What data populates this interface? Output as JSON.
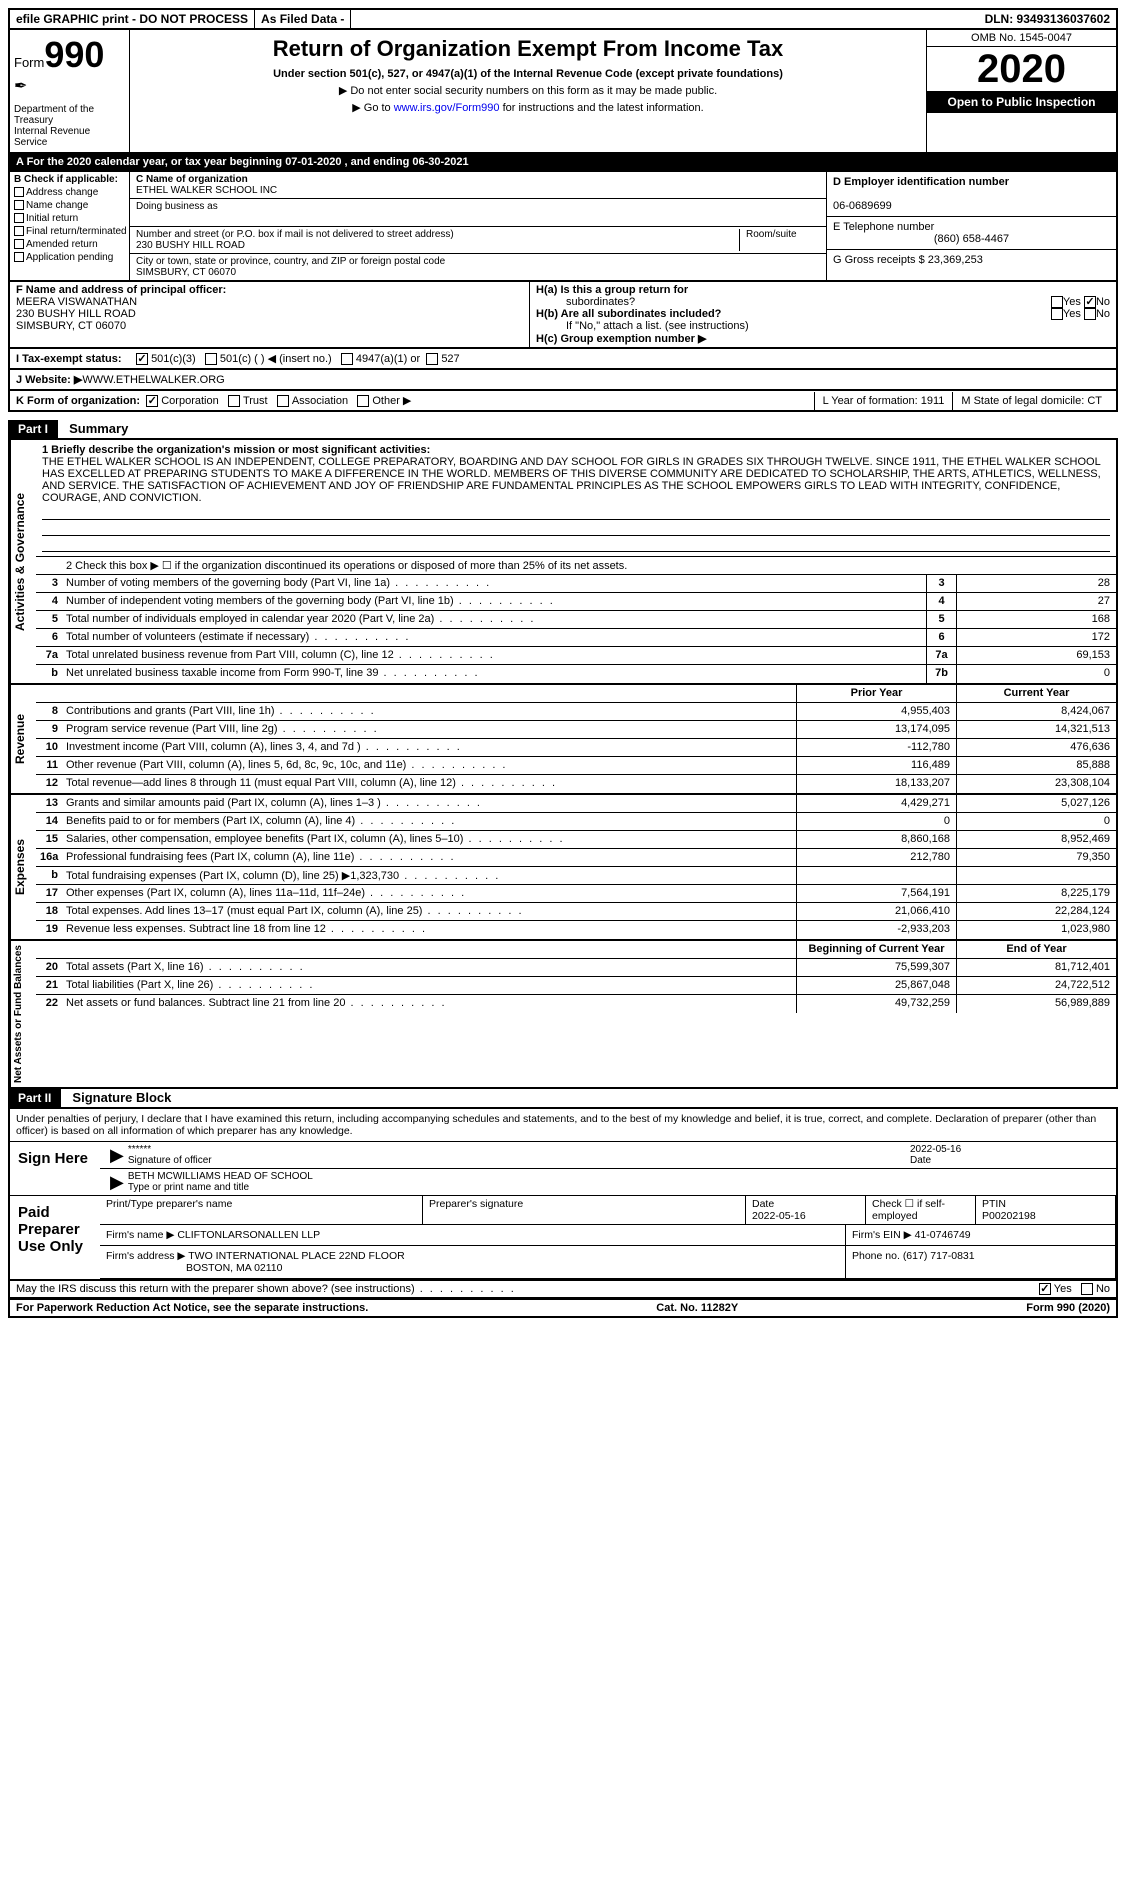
{
  "top": {
    "efile": "efile GRAPHIC print - DO NOT PROCESS",
    "asfiled": "As Filed Data -",
    "dln": "DLN: 93493136037602"
  },
  "header": {
    "form_label": "Form",
    "form_num": "990",
    "dept": "Department of the Treasury\nInternal Revenue Service",
    "title": "Return of Organization Exempt From Income Tax",
    "subtitle": "Under section 501(c), 527, or 4947(a)(1) of the Internal Revenue Code (except private foundations)",
    "line2": "▶ Do not enter social security numbers on this form as it may be made public.",
    "line3_pre": "▶ Go to ",
    "line3_link": "www.irs.gov/Form990",
    "line3_post": " for instructions and the latest information.",
    "omb": "OMB No. 1545-0047",
    "year": "2020",
    "open": "Open to Public Inspection"
  },
  "rowA": "A   For the 2020 calendar year, or tax year beginning 07-01-2020   , and ending 06-30-2021",
  "secB": {
    "label": "B Check if applicable:",
    "checks": [
      "Address change",
      "Name change",
      "Initial return",
      "Final return/terminated",
      "Amended return",
      "Application pending"
    ],
    "c_label": "C Name of organization",
    "c_name": "ETHEL WALKER SCHOOL INC",
    "dba_label": "Doing business as",
    "street_label": "Number and street (or P.O. box if mail is not delivered to street address)",
    "room_label": "Room/suite",
    "street": "230 BUSHY HILL ROAD",
    "city_label": "City or town, state or province, country, and ZIP or foreign postal code",
    "city": "SIMSBURY, CT  06070",
    "d_label": "D Employer identification number",
    "d_val": "06-0689699",
    "e_label": "E Telephone number",
    "e_val": "(860) 658-4467",
    "g_label": "G Gross receipts $ 23,369,253"
  },
  "rowF": {
    "f_label": "F  Name and address of principal officer:",
    "f_name": "MEERA VISWANATHAN",
    "f_addr1": "230 BUSHY HILL ROAD",
    "f_addr2": "SIMSBURY, CT  06070",
    "ha": "H(a)  Is this a group return for",
    "ha2": "subordinates?",
    "hb": "H(b)  Are all subordinates included?",
    "hb2": "If \"No,\" attach a list. (see instructions)",
    "hc": "H(c)  Group exemption number ▶",
    "yes": "Yes",
    "no": "No"
  },
  "rowI": {
    "label": "I   Tax-exempt status:",
    "opts": [
      "501(c)(3)",
      "501(c) (  ) ◀ (insert no.)",
      "4947(a)(1) or",
      "527"
    ]
  },
  "rowJ": {
    "label": "J   Website: ▶",
    "val": "  WWW.ETHELWALKER.ORG"
  },
  "rowK": {
    "label": "K Form of organization:",
    "opts": [
      "Corporation",
      "Trust",
      "Association",
      "Other ▶"
    ],
    "L": "L Year of formation: 1911",
    "M": "M State of legal domicile: CT"
  },
  "partI": {
    "num": "Part I",
    "title": "Summary",
    "q1_label": "1  Briefly describe the organization's mission or most significant activities:",
    "mission": "THE ETHEL WALKER SCHOOL IS AN INDEPENDENT, COLLEGE PREPARATORY, BOARDING AND DAY SCHOOL FOR GIRLS IN GRADES SIX THROUGH TWELVE. SINCE 1911, THE ETHEL WALKER SCHOOL HAS EXCELLED AT PREPARING STUDENTS TO MAKE A DIFFERENCE IN THE WORLD. MEMBERS OF THIS DIVERSE COMMUNITY ARE DEDICATED TO SCHOLARSHIP, THE ARTS, ATHLETICS, WELLNESS, AND SERVICE. THE SATISFACTION OF ACHIEVEMENT AND JOY OF FRIENDSHIP ARE FUNDAMENTAL PRINCIPLES AS THE SCHOOL EMPOWERS GIRLS TO LEAD WITH INTEGRITY, CONFIDENCE, COURAGE, AND CONVICTION.",
    "q2": "2   Check this box ▶ ☐ if the organization discontinued its operations or disposed of more than 25% of its net assets.",
    "side_ag": "Activities & Governance",
    "side_rev": "Revenue",
    "side_exp": "Expenses",
    "side_net": "Net Assets or Fund Balances",
    "rows_ag": [
      {
        "n": "3",
        "d": "Number of voting members of the governing body (Part VI, line 1a)",
        "k": "3",
        "v": "28"
      },
      {
        "n": "4",
        "d": "Number of independent voting members of the governing body (Part VI, line 1b)",
        "k": "4",
        "v": "27"
      },
      {
        "n": "5",
        "d": "Total number of individuals employed in calendar year 2020 (Part V, line 2a)",
        "k": "5",
        "v": "168"
      },
      {
        "n": "6",
        "d": "Total number of volunteers (estimate if necessary)",
        "k": "6",
        "v": "172"
      },
      {
        "n": "7a",
        "d": "Total unrelated business revenue from Part VIII, column (C), line 12",
        "k": "7a",
        "v": "69,153"
      },
      {
        "n": "b",
        "d": "Net unrelated business taxable income from Form 990-T, line 39",
        "k": "7b",
        "v": "0"
      }
    ],
    "head_prior": "Prior Year",
    "head_curr": "Current Year",
    "rows_rev": [
      {
        "n": "8",
        "d": "Contributions and grants (Part VIII, line 1h)",
        "p": "4,955,403",
        "c": "8,424,067"
      },
      {
        "n": "9",
        "d": "Program service revenue (Part VIII, line 2g)",
        "p": "13,174,095",
        "c": "14,321,513"
      },
      {
        "n": "10",
        "d": "Investment income (Part VIII, column (A), lines 3, 4, and 7d )",
        "p": "-112,780",
        "c": "476,636"
      },
      {
        "n": "11",
        "d": "Other revenue (Part VIII, column (A), lines 5, 6d, 8c, 9c, 10c, and 11e)",
        "p": "116,489",
        "c": "85,888"
      },
      {
        "n": "12",
        "d": "Total revenue—add lines 8 through 11 (must equal Part VIII, column (A), line 12)",
        "p": "18,133,207",
        "c": "23,308,104"
      }
    ],
    "rows_exp": [
      {
        "n": "13",
        "d": "Grants and similar amounts paid (Part IX, column (A), lines 1–3 )",
        "p": "4,429,271",
        "c": "5,027,126"
      },
      {
        "n": "14",
        "d": "Benefits paid to or for members (Part IX, column (A), line 4)",
        "p": "0",
        "c": "0"
      },
      {
        "n": "15",
        "d": "Salaries, other compensation, employee benefits (Part IX, column (A), lines 5–10)",
        "p": "8,860,168",
        "c": "8,952,469"
      },
      {
        "n": "16a",
        "d": "Professional fundraising fees (Part IX, column (A), line 11e)",
        "p": "212,780",
        "c": "79,350"
      },
      {
        "n": "b",
        "d": "Total fundraising expenses (Part IX, column (D), line 25) ▶1,323,730",
        "p": "",
        "c": ""
      },
      {
        "n": "17",
        "d": "Other expenses (Part IX, column (A), lines 11a–11d, 11f–24e)",
        "p": "7,564,191",
        "c": "8,225,179"
      },
      {
        "n": "18",
        "d": "Total expenses. Add lines 13–17 (must equal Part IX, column (A), line 25)",
        "p": "21,066,410",
        "c": "22,284,124"
      },
      {
        "n": "19",
        "d": "Revenue less expenses. Subtract line 18 from line 12",
        "p": "-2,933,203",
        "c": "1,023,980"
      }
    ],
    "head_beg": "Beginning of Current Year",
    "head_end": "End of Year",
    "rows_net": [
      {
        "n": "20",
        "d": "Total assets (Part X, line 16)",
        "p": "75,599,307",
        "c": "81,712,401"
      },
      {
        "n": "21",
        "d": "Total liabilities (Part X, line 26)",
        "p": "25,867,048",
        "c": "24,722,512"
      },
      {
        "n": "22",
        "d": "Net assets or fund balances. Subtract line 21 from line 20",
        "p": "49,732,259",
        "c": "56,989,889"
      }
    ]
  },
  "partII": {
    "num": "Part II",
    "title": "Signature Block",
    "decl": "Under penalties of perjury, I declare that I have examined this return, including accompanying schedules and statements, and to the best of my knowledge and belief, it is true, correct, and complete. Declaration of preparer (other than officer) is based on all information of which preparer has any knowledge.",
    "sign_here": "Sign Here",
    "stars": "******",
    "sig_officer": "Signature of officer",
    "date1": "2022-05-16",
    "date_label": "Date",
    "name_title": "BETH MCWILLIAMS HEAD OF SCHOOL",
    "type_label": "Type or print name and title",
    "paid": "Paid Preparer Use Only",
    "col1": "Print/Type preparer's name",
    "col2": "Preparer's signature",
    "col3": "Date",
    "col3v": "2022-05-16",
    "col4": "Check ☐ if self-employed",
    "col5l": "PTIN",
    "col5v": "P00202198",
    "firm_name_l": "Firm's name    ▶",
    "firm_name": "CLIFTONLARSONALLEN LLP",
    "firm_ein_l": "Firm's EIN ▶",
    "firm_ein": "41-0746749",
    "firm_addr_l": "Firm's address ▶",
    "firm_addr1": "TWO INTERNATIONAL PLACE 22ND FLOOR",
    "firm_addr2": "BOSTON, MA  02110",
    "phone_l": "Phone no.",
    "phone": "(617) 717-0831",
    "discuss": "May the IRS discuss this return with the preparer shown above? (see instructions)",
    "paperwork": "For Paperwork Reduction Act Notice, see the separate instructions.",
    "catno": "Cat. No. 11282Y",
    "formfoot": "Form 990 (2020)"
  }
}
